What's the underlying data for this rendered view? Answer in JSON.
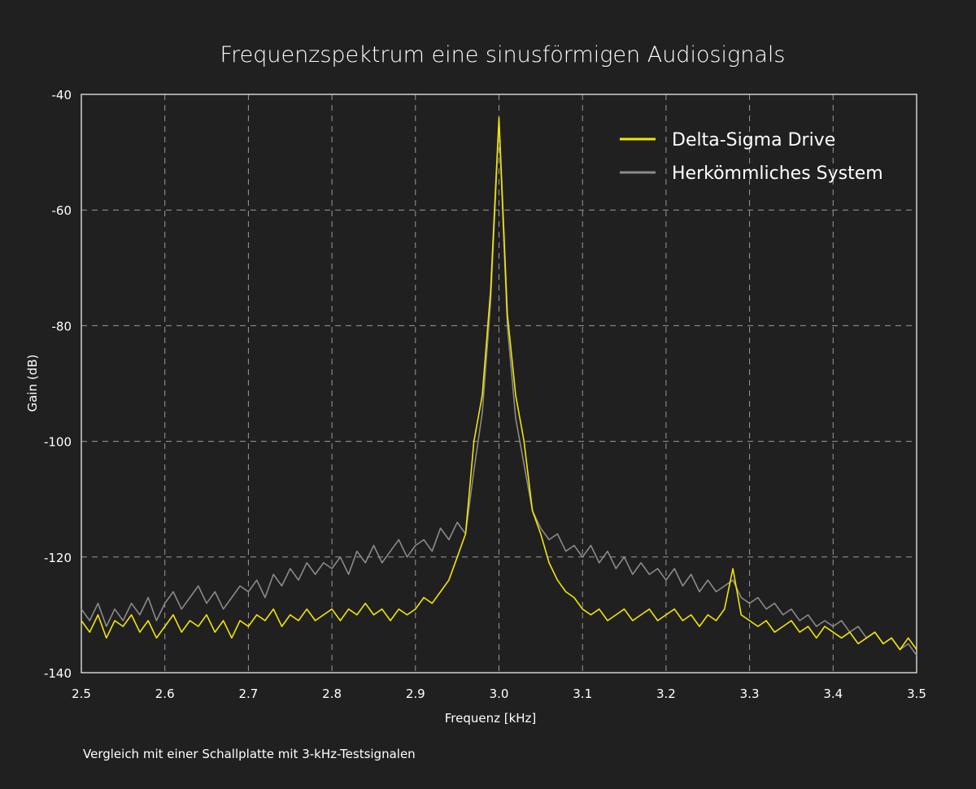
{
  "chart_data": {
    "type": "line",
    "title": "Frequenzspektrum eine sinusförmigen Audiosignals",
    "xlabel": "Frequenz [kHz]",
    "ylabel": "Gain (dB)",
    "xlim": [
      2.5,
      3.5
    ],
    "ylim": [
      -140,
      -40
    ],
    "xticks": [
      "2.5",
      "2.6",
      "2.7",
      "2.8",
      "2.9",
      "3.0",
      "3.1",
      "3.2",
      "3.3",
      "3.4",
      "3.5"
    ],
    "yticks": [
      "-40",
      "-60",
      "-80",
      "-100",
      "-120",
      "-140"
    ],
    "grid": true,
    "legend_position": "top-right",
    "x": [
      2.5,
      2.51,
      2.52,
      2.53,
      2.54,
      2.55,
      2.56,
      2.57,
      2.58,
      2.59,
      2.6,
      2.61,
      2.62,
      2.63,
      2.64,
      2.65,
      2.66,
      2.67,
      2.68,
      2.69,
      2.7,
      2.71,
      2.72,
      2.73,
      2.74,
      2.75,
      2.76,
      2.77,
      2.78,
      2.79,
      2.8,
      2.81,
      2.82,
      2.83,
      2.84,
      2.85,
      2.86,
      2.87,
      2.88,
      2.89,
      2.9,
      2.91,
      2.92,
      2.93,
      2.94,
      2.95,
      2.96,
      2.97,
      2.98,
      2.99,
      3.0,
      3.01,
      3.02,
      3.03,
      3.04,
      3.05,
      3.06,
      3.07,
      3.08,
      3.09,
      3.1,
      3.11,
      3.12,
      3.13,
      3.14,
      3.15,
      3.16,
      3.17,
      3.18,
      3.19,
      3.2,
      3.21,
      3.22,
      3.23,
      3.24,
      3.25,
      3.26,
      3.27,
      3.28,
      3.29,
      3.3,
      3.31,
      3.32,
      3.33,
      3.34,
      3.35,
      3.36,
      3.37,
      3.38,
      3.39,
      3.4,
      3.41,
      3.42,
      3.43,
      3.44,
      3.45,
      3.46,
      3.47,
      3.48,
      3.49,
      3.5
    ],
    "series": [
      {
        "name": "Herkömmliches System",
        "color": "#8a8a8a",
        "values": [
          -129,
          -131,
          -128,
          -132,
          -129,
          -131,
          -128,
          -130,
          -127,
          -131,
          -128,
          -126,
          -129,
          -127,
          -125,
          -128,
          -126,
          -129,
          -127,
          -125,
          -126,
          -124,
          -127,
          -123,
          -125,
          -122,
          -124,
          -121,
          -123,
          -121,
          -122,
          -120,
          -123,
          -119,
          -121,
          -118,
          -121,
          -119,
          -117,
          -120,
          -118,
          -117,
          -119,
          -115,
          -117,
          -114,
          -116,
          -105,
          -95,
          -76,
          -45,
          -80,
          -96,
          -104,
          -112,
          -115,
          -117,
          -116,
          -119,
          -118,
          -120,
          -118,
          -121,
          -119,
          -122,
          -120,
          -123,
          -121,
          -123,
          -122,
          -124,
          -122,
          -125,
          -123,
          -126,
          -124,
          -126,
          -125,
          -124,
          -127,
          -128,
          -127,
          -129,
          -128,
          -130,
          -129,
          -131,
          -130,
          -132,
          -131,
          -132,
          -131,
          -133,
          -132,
          -134,
          -133,
          -135,
          -134,
          -136,
          -135,
          -137
        ]
      },
      {
        "name": "Delta-Sigma Drive",
        "color": "#f2e600",
        "values": [
          -131,
          -133,
          -130,
          -134,
          -131,
          -132,
          -130,
          -133,
          -131,
          -134,
          -132,
          -130,
          -133,
          -131,
          -132,
          -130,
          -133,
          -131,
          -134,
          -131,
          -132,
          -130,
          -131,
          -129,
          -132,
          -130,
          -131,
          -129,
          -131,
          -130,
          -129,
          -131,
          -129,
          -130,
          -128,
          -130,
          -129,
          -131,
          -129,
          -130,
          -129,
          -127,
          -128,
          -126,
          -124,
          -120,
          -116,
          -100,
          -92,
          -74,
          -44,
          -78,
          -92,
          -100,
          -112,
          -116,
          -121,
          -124,
          -126,
          -127,
          -129,
          -130,
          -129,
          -131,
          -130,
          -129,
          -131,
          -130,
          -129,
          -131,
          -130,
          -129,
          -131,
          -130,
          -132,
          -130,
          -131,
          -129,
          -122,
          -130,
          -131,
          -132,
          -131,
          -133,
          -132,
          -131,
          -133,
          -132,
          -134,
          -132,
          -133,
          -134,
          -133,
          -135,
          -134,
          -133,
          -135,
          -134,
          -136,
          -134,
          -136
        ]
      }
    ],
    "note": "Vergleich mit einer Schallplatte mit 3-kHz-Testsignalen"
  }
}
